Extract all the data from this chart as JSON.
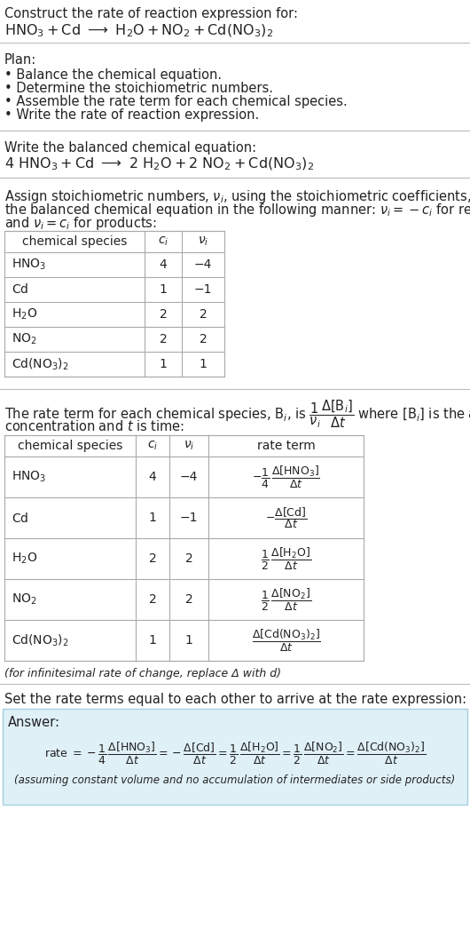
{
  "bg_color": "#ffffff",
  "text_color": "#222222",
  "title_line1": "Construct the rate of reaction expression for:",
  "plan_header": "Plan:",
  "plan_items": [
    "• Balance the chemical equation.",
    "• Determine the stoichiometric numbers.",
    "• Assemble the rate term for each chemical species.",
    "• Write the rate of reaction expression."
  ],
  "balanced_header": "Write the balanced chemical equation:",
  "infinitesimal_note": "(for infinitesimal rate of change, replace Δ with d)",
  "set_rate_text": "Set the rate terms equal to each other to arrive at the rate expression:",
  "answer_bg": "#dff0f7",
  "answer_border": "#a8cfe0",
  "assuming_note": "(assuming constant volume and no accumulation of intermediates or side products)",
  "lm": 5,
  "fs_body": 10.5,
  "fs_table": 10.0,
  "fs_small": 9.0,
  "line_color": "#bbbbbb",
  "table_line_color": "#aaaaaa"
}
